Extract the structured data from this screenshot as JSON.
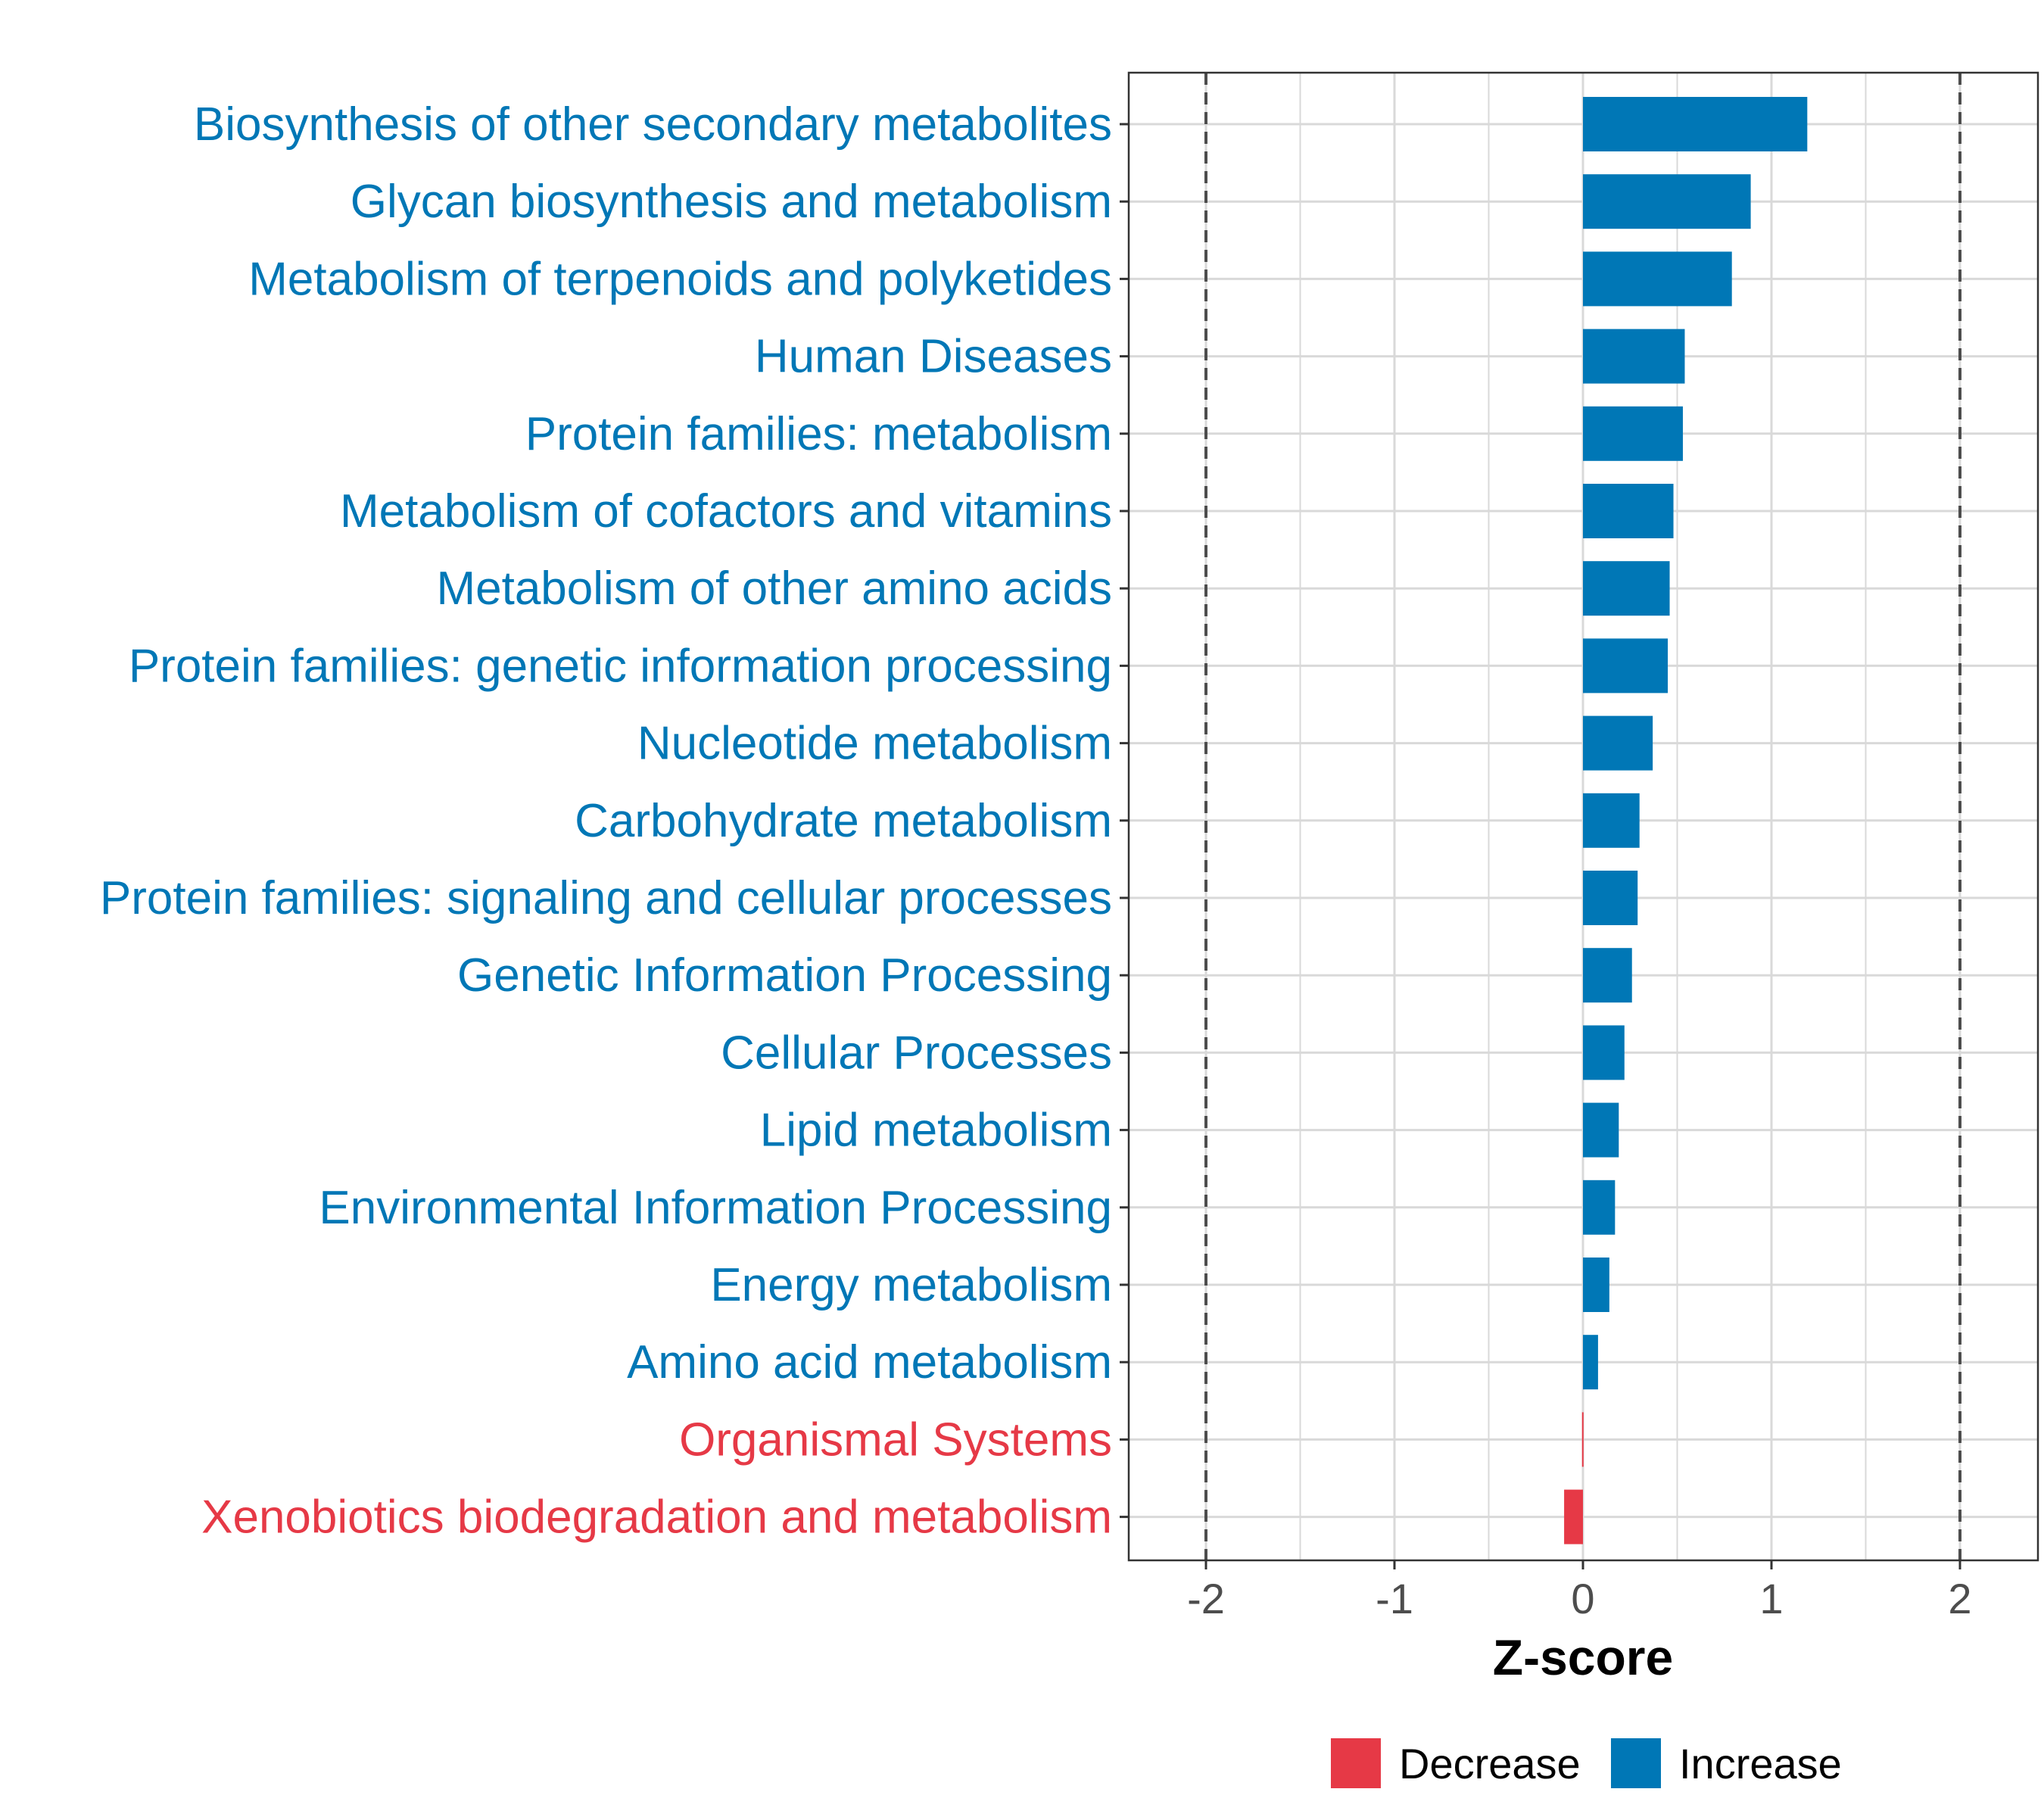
{
  "chart_data": {
    "type": "bar",
    "orientation": "horizontal",
    "xlabel": "Z-score",
    "xlim": [
      -2.4,
      2.4
    ],
    "xticks": [
      -2,
      -1,
      0,
      1,
      2
    ],
    "xtick_labels": [
      "-2",
      "-1",
      "0",
      "1",
      "2"
    ],
    "reference_lines": [
      -2,
      2
    ],
    "grid": true,
    "legend_position": "bottom",
    "categories": [
      "Biosynthesis of other secondary metabolites",
      "Glycan biosynthesis and metabolism",
      "Metabolism of terpenoids and polyketides",
      "Human Diseases",
      "Protein families: metabolism",
      "Metabolism of cofactors and vitamins",
      "Metabolism of other amino acids",
      "Protein families: genetic information processing",
      "Nucleotide metabolism",
      "Carbohydrate metabolism",
      "Protein families: signaling and cellular processes",
      "Genetic Information Processing",
      "Cellular Processes",
      "Lipid metabolism",
      "Environmental Information Processing",
      "Energy metabolism",
      "Amino acid metabolism",
      "Organismal Systems",
      "Xenobiotics biodegradation and metabolism"
    ],
    "values": [
      1.19,
      0.89,
      0.79,
      0.54,
      0.53,
      0.48,
      0.46,
      0.45,
      0.37,
      0.3,
      0.29,
      0.26,
      0.22,
      0.19,
      0.17,
      0.14,
      0.08,
      -0.005,
      -0.1
    ],
    "groups": [
      "Increase",
      "Increase",
      "Increase",
      "Increase",
      "Increase",
      "Increase",
      "Increase",
      "Increase",
      "Increase",
      "Increase",
      "Increase",
      "Increase",
      "Increase",
      "Increase",
      "Increase",
      "Increase",
      "Increase",
      "Decrease",
      "Decrease"
    ],
    "legend": [
      {
        "label": "Decrease",
        "color": "#e63946"
      },
      {
        "label": "Increase",
        "color": "#0077b6"
      }
    ]
  },
  "colors": {
    "increase": "#0077b6",
    "decrease": "#e63946",
    "grid": "#d9d9d9",
    "reference_line": "#4d4d4d"
  }
}
